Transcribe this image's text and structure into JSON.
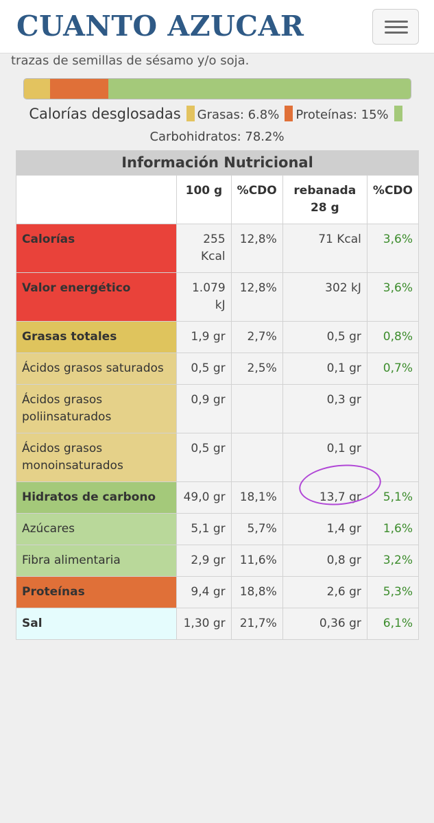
{
  "header": {
    "logo": "CUANTO AZUCAR",
    "menu_icon": "hamburger-menu-icon"
  },
  "ingredients_tail": "trazas de semillas de sésamo y/o soja.",
  "calories_breakdown": {
    "title": "Calorías desglosadas",
    "fat_label": "Grasas: 6.8%",
    "protein_label": "Proteínas: 15%",
    "carbs_label": "Carbohidratos: 78.2%",
    "fat_pct": 6.8,
    "protein_pct": 15,
    "carbs_pct": 78.2,
    "colors": {
      "fat": "#e3c35f",
      "protein": "#e07038",
      "carbs": "#a4c97a"
    }
  },
  "table": {
    "caption": "Información Nutricional",
    "headers": [
      "100 g",
      "%CDO",
      "rebanada 28 g",
      "%CDO"
    ],
    "rows": [
      {
        "name": "Calorías",
        "v100": "255 Kcal",
        "cdo1": "12,8%",
        "vslice": "71 Kcal",
        "cdo2": "3,6%"
      },
      {
        "name": "Valor energético",
        "v100": "1.079 kJ",
        "cdo1": "12,8%",
        "vslice": "302 kJ",
        "cdo2": "3,6%"
      },
      {
        "name": "Grasas totales",
        "v100": "1,9 gr",
        "cdo1": "2,7%",
        "vslice": "0,5 gr",
        "cdo2": "0,8%"
      },
      {
        "name": "Ácidos grasos saturados",
        "v100": "0,5 gr",
        "cdo1": "2,5%",
        "vslice": "0,1 gr",
        "cdo2": "0,7%"
      },
      {
        "name": "Ácidos grasos poliinsaturados",
        "v100": "0,9 gr",
        "cdo1": "",
        "vslice": "0,3 gr",
        "cdo2": ""
      },
      {
        "name": "Ácidos grasos monoinsaturados",
        "v100": "0,5 gr",
        "cdo1": "",
        "vslice": "0,1 gr",
        "cdo2": ""
      },
      {
        "name": "Hidratos de carbono",
        "v100": "49,0 gr",
        "cdo1": "18,1%",
        "vslice": "13,7 gr",
        "cdo2": "5,1%"
      },
      {
        "name": "Azúcares",
        "v100": "5,1 gr",
        "cdo1": "5,7%",
        "vslice": "1,4 gr",
        "cdo2": "1,6%"
      },
      {
        "name": "Fibra alimentaria",
        "v100": "2,9 gr",
        "cdo1": "11,6%",
        "vslice": "0,8 gr",
        "cdo2": "3,2%"
      },
      {
        "name": "Proteínas",
        "v100": "9,4 gr",
        "cdo1": "18,8%",
        "vslice": "2,6 gr",
        "cdo2": "5,3%"
      },
      {
        "name": "Sal",
        "v100": "1,30 gr",
        "cdo1": "21,7%",
        "vslice": "0,36 gr",
        "cdo2": "6,1%"
      }
    ]
  }
}
